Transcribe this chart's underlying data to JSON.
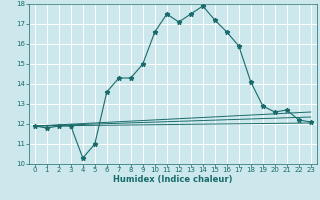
{
  "title": "",
  "xlabel": "Humidex (Indice chaleur)",
  "bg_color": "#cce8ec",
  "grid_color": "#ffffff",
  "line_color": "#1a6b6b",
  "xlim": [
    -0.5,
    23.5
  ],
  "ylim": [
    10,
    18
  ],
  "xticks": [
    0,
    1,
    2,
    3,
    4,
    5,
    6,
    7,
    8,
    9,
    10,
    11,
    12,
    13,
    14,
    15,
    16,
    17,
    18,
    19,
    20,
    21,
    22,
    23
  ],
  "yticks": [
    10,
    11,
    12,
    13,
    14,
    15,
    16,
    17,
    18
  ],
  "main_x": [
    0,
    1,
    2,
    3,
    4,
    5,
    6,
    7,
    8,
    9,
    10,
    11,
    12,
    13,
    14,
    15,
    16,
    17,
    18,
    19,
    20,
    21,
    22,
    23
  ],
  "main_y": [
    11.9,
    11.8,
    11.9,
    11.9,
    10.3,
    11.0,
    13.6,
    14.3,
    14.3,
    15.0,
    16.6,
    17.5,
    17.1,
    17.5,
    17.9,
    17.2,
    16.6,
    15.9,
    14.1,
    12.9,
    12.6,
    12.7,
    12.2,
    12.1
  ],
  "line2_x": [
    0,
    23
  ],
  "line2_y": [
    11.9,
    12.05
  ],
  "line3_x": [
    0,
    23
  ],
  "line3_y": [
    11.9,
    12.35
  ],
  "line4_x": [
    0,
    23
  ],
  "line4_y": [
    11.9,
    12.6
  ]
}
